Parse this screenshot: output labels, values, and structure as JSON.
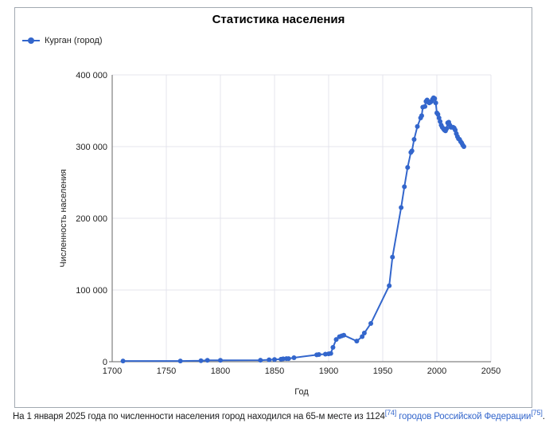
{
  "chart_data": {
    "type": "line",
    "title": "Статистика населения",
    "xlabel": "Год",
    "ylabel": "Численность населения",
    "xlim": [
      1700,
      2050
    ],
    "ylim": [
      0,
      400000
    ],
    "xticks": [
      1700,
      1750,
      1800,
      1850,
      1900,
      1950,
      2000,
      2050
    ],
    "yticks": [
      0,
      100000,
      200000,
      300000,
      400000
    ],
    "ytick_labels": [
      "0",
      "100 000",
      "200 000",
      "300 000",
      "400 000"
    ],
    "grid": true,
    "legend": "top-left",
    "color": "#3366cc",
    "series": [
      {
        "name": "Курган (город)",
        "x": [
          1710,
          1763,
          1782,
          1788,
          1800,
          1837,
          1845,
          1850,
          1856,
          1858,
          1861,
          1863,
          1868,
          1889,
          1891,
          1897,
          1900,
          1902,
          1904,
          1907,
          1910,
          1912,
          1914,
          1926,
          1931,
          1933,
          1939,
          1956,
          1959,
          1967,
          1970,
          1973,
          1976,
          1977,
          1979,
          1982,
          1985,
          1986,
          1987,
          1989,
          1990,
          1991,
          1992,
          1993,
          1994,
          1995,
          1996,
          1997,
          1998,
          1999,
          2000,
          2001,
          2002,
          2003,
          2004,
          2005,
          2006,
          2007,
          2008,
          2009,
          2010,
          2011,
          2012,
          2013,
          2014,
          2015,
          2016,
          2017,
          2018,
          2019,
          2020,
          2021,
          2022,
          2023,
          2024,
          2025
        ],
        "y": [
          1000,
          1000,
          1400,
          1900,
          2000,
          2100,
          2600,
          3000,
          3500,
          4000,
          4300,
          4300,
          5600,
          9600,
          10000,
          10600,
          11000,
          11500,
          20000,
          31000,
          34800,
          36000,
          37000,
          28700,
          35000,
          40000,
          53300,
          106000,
          145900,
          215000,
          244000,
          271000,
          292000,
          294000,
          310000,
          328000,
          340000,
          343000,
          355000,
          356000,
          363000,
          365000,
          362000,
          361000,
          362000,
          363000,
          366000,
          368000,
          367000,
          361000,
          347000,
          345000,
          340000,
          335000,
          330000,
          327000,
          325000,
          323000,
          322000,
          325000,
          333000,
          334000,
          330000,
          327000,
          327000,
          327000,
          326000,
          323000,
          318000,
          314000,
          311000,
          310000,
          307000,
          305000,
          302000,
          300000
        ]
      }
    ]
  },
  "footnote": {
    "text": "На 1 января 2025 года по численности населения город находился на 65-м месте из 1124",
    "ref1": "[74]",
    "link": "городов Российской Федерации",
    "ref2": "[75]",
    "end": "."
  }
}
